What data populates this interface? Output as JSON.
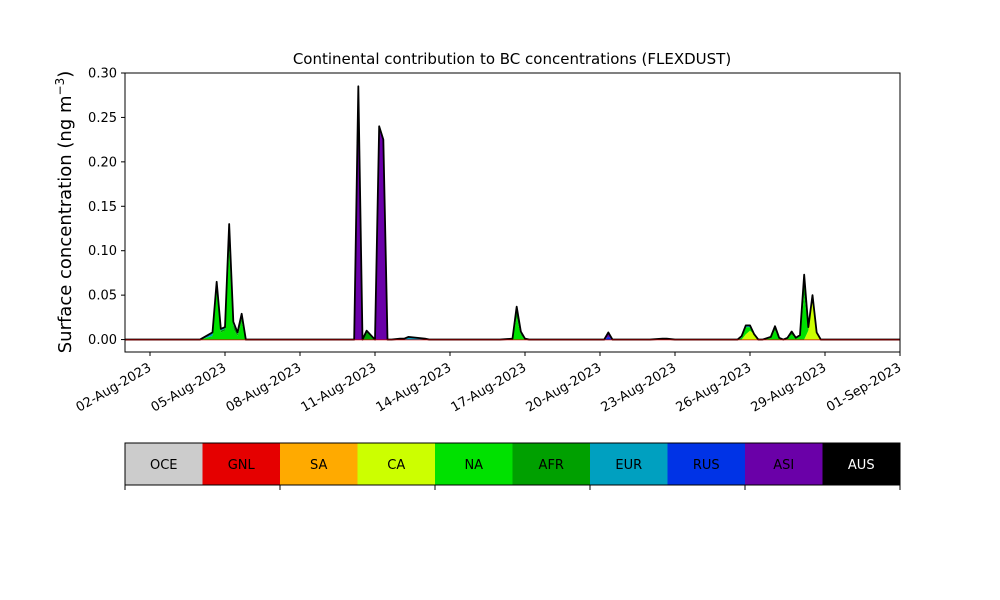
{
  "chart_data": {
    "type": "area",
    "stacked": true,
    "title": "Continental contribution to BC concentrations (FLEXDUST)",
    "xlabel": "",
    "ylabel": "Surface concentration (ng m",
    "ylabel_unit_exponent": "−3",
    "ylabel_close": ")",
    "xlim": [
      "2023-08-01",
      "2023-09-01"
    ],
    "ylim": [
      -0.014,
      0.3
    ],
    "grid": false,
    "x_tick_labels": [
      "02-Aug-2023",
      "05-Aug-2023",
      "08-Aug-2023",
      "11-Aug-2023",
      "14-Aug-2023",
      "17-Aug-2023",
      "20-Aug-2023",
      "23-Aug-2023",
      "26-Aug-2023",
      "29-Aug-2023",
      "01-Sep-2023"
    ],
    "x_tick_dates": [
      "2023-08-02",
      "2023-08-05",
      "2023-08-08",
      "2023-08-11",
      "2023-08-14",
      "2023-08-17",
      "2023-08-20",
      "2023-08-23",
      "2023-08-26",
      "2023-08-29",
      "2023-09-01"
    ],
    "y_tick_labels": [
      "0.00",
      "0.05",
      "0.10",
      "0.15",
      "0.20",
      "0.25",
      "0.30"
    ],
    "y_tick_values": [
      0,
      0.05,
      0.1,
      0.15,
      0.2,
      0.25,
      0.3
    ],
    "x": [
      "2023-08-01",
      "2023-08-03",
      "2023-08-04",
      "2023-08-04 12:00",
      "2023-08-04 16:00",
      "2023-08-04 20:00",
      "2023-08-05",
      "2023-08-05 04:00",
      "2023-08-05 08:00",
      "2023-08-05 12:00",
      "2023-08-05 16:00",
      "2023-08-05 20:00",
      "2023-08-06",
      "2023-08-06 04:00",
      "2023-08-06 08:00",
      "2023-08-06 12:00",
      "2023-08-07",
      "2023-08-09",
      "2023-08-10",
      "2023-08-10 04:00",
      "2023-08-10 08:00",
      "2023-08-10 12:00",
      "2023-08-10 16:00",
      "2023-08-11",
      "2023-08-11 04:00",
      "2023-08-11 08:00",
      "2023-08-11 12:00",
      "2023-08-11 16:00",
      "2023-08-12",
      "2023-08-12 04:00",
      "2023-08-12 08:00",
      "2023-08-12 16:00",
      "2023-08-13",
      "2023-08-13 04:00",
      "2023-08-13 08:00",
      "2023-08-13 12:00",
      "2023-08-13 16:00",
      "2023-08-13 20:00",
      "2023-08-14",
      "2023-08-14 08:00",
      "2023-08-16",
      "2023-08-16 12:00",
      "2023-08-16 16:00",
      "2023-08-16 20:00",
      "2023-08-17",
      "2023-08-17 04:00",
      "2023-08-17 08:00",
      "2023-08-17 12:00",
      "2023-08-19",
      "2023-08-20",
      "2023-08-20 04:00",
      "2023-08-20 08:00",
      "2023-08-20 12:00",
      "2023-08-20 16:00",
      "2023-08-22",
      "2023-08-22 12:00",
      "2023-08-22 16:00",
      "2023-08-23",
      "2023-08-25",
      "2023-08-25 12:00",
      "2023-08-25 16:00",
      "2023-08-25 20:00",
      "2023-08-26",
      "2023-08-26 04:00",
      "2023-08-26 08:00",
      "2023-08-26 12:00",
      "2023-08-26 20:00",
      "2023-08-27",
      "2023-08-27 04:00",
      "2023-08-27 08:00",
      "2023-08-27 12:00",
      "2023-08-27 16:00",
      "2023-08-27 20:00",
      "2023-08-28",
      "2023-08-28 04:00",
      "2023-08-28 08:00",
      "2023-08-28 12:00",
      "2023-08-28 16:00",
      "2023-08-28 20:00",
      "2023-08-29",
      "2023-08-29 04:00",
      "2023-08-29 08:00",
      "2023-08-29 16:00",
      "2023-08-30",
      "2023-08-30 12:00",
      "2023-09-01"
    ],
    "series": [
      {
        "name": "OCE",
        "color": "#cccccc",
        "values": [
          0,
          0,
          0,
          0,
          0,
          0,
          0,
          0,
          0,
          0,
          0,
          0,
          0,
          0,
          0,
          0,
          0,
          0,
          0,
          0,
          0,
          0,
          0,
          0,
          0,
          0,
          0,
          0,
          0,
          0,
          0,
          0,
          0,
          0,
          0,
          0,
          0,
          0,
          0,
          0,
          0,
          0,
          0,
          0,
          0,
          0,
          0,
          0,
          0,
          0,
          0,
          0,
          0,
          0,
          0,
          0,
          0,
          0,
          0,
          0,
          0,
          0,
          0,
          0,
          0,
          0,
          0,
          0,
          0,
          0,
          0,
          0,
          0,
          0,
          0,
          0,
          0,
          0,
          0,
          0,
          0,
          0,
          0,
          0,
          0,
          0
        ]
      },
      {
        "name": "GNL",
        "color": "#e50000",
        "values": [
          0,
          0,
          0,
          0,
          0,
          0,
          0,
          0,
          0,
          0,
          0,
          0,
          0,
          0,
          0,
          0,
          0,
          0,
          0,
          0,
          0,
          0,
          0,
          0,
          0,
          0,
          0,
          0,
          0,
          0,
          0,
          0,
          0,
          0,
          0,
          0,
          0,
          0,
          0,
          0,
          0,
          0,
          0,
          0,
          0,
          0,
          0,
          0,
          0,
          0,
          0,
          0,
          0,
          0,
          0,
          0,
          0,
          0,
          0,
          0,
          0,
          0,
          0,
          0,
          0,
          0,
          0,
          0,
          0,
          0,
          0,
          0,
          0,
          0,
          0,
          0,
          0,
          0,
          0,
          0,
          0,
          0,
          0,
          0,
          0,
          0
        ]
      },
      {
        "name": "SA",
        "color": "#ffaa00",
        "values": [
          0,
          0,
          0,
          0,
          0,
          0,
          0,
          0,
          0,
          0,
          0,
          0,
          0,
          0,
          0,
          0,
          0,
          0,
          0,
          0,
          0,
          0,
          0,
          0,
          0,
          0,
          0,
          0,
          0,
          0,
          0,
          0,
          0,
          0,
          0,
          0,
          0,
          0,
          0,
          0,
          0,
          0,
          0,
          0,
          0,
          0,
          0,
          0,
          0,
          0,
          0,
          0,
          0,
          0,
          0,
          0,
          0,
          0,
          0,
          0,
          0,
          0,
          0,
          0,
          0,
          0,
          0,
          0,
          0,
          0,
          0,
          0,
          0,
          0,
          0,
          0,
          0,
          0,
          0,
          0,
          0,
          0,
          0,
          0,
          0,
          0
        ]
      },
      {
        "name": "CA",
        "color": "#ccff00",
        "values": [
          0,
          0,
          0,
          0,
          0,
          0,
          0,
          0,
          0,
          0,
          0,
          0,
          0,
          0,
          0,
          0,
          0,
          0,
          0,
          0,
          0,
          0,
          0,
          0,
          0,
          0,
          0,
          0,
          0,
          0,
          0,
          0,
          0,
          0,
          0,
          0,
          0,
          0,
          0,
          0,
          0,
          0,
          0,
          0,
          0,
          0,
          0,
          0,
          0,
          0,
          0,
          0,
          0,
          0,
          0,
          0,
          0,
          0,
          0,
          0,
          0,
          0.006,
          0.01,
          0.006,
          0,
          0,
          0,
          0,
          0,
          0,
          0,
          0,
          0,
          0,
          0,
          0.01,
          0.05,
          0.008,
          0,
          0,
          0,
          0,
          0,
          0,
          0,
          0
        ]
      },
      {
        "name": "NA",
        "color": "#00e100",
        "values": [
          0,
          0,
          0,
          0.004,
          0.055,
          0.008,
          0.01,
          0.1,
          0.012,
          0.004,
          0.02,
          0,
          0,
          0,
          0,
          0,
          0,
          0,
          0,
          0,
          0,
          0,
          0,
          0,
          0,
          0,
          0,
          0,
          0,
          0,
          0,
          0,
          0,
          0,
          0,
          0,
          0,
          0,
          0,
          0,
          0,
          0,
          0.025,
          0.005,
          0,
          0,
          0,
          0,
          0,
          0,
          0,
          0,
          0,
          0,
          0,
          0,
          0,
          0,
          0,
          0,
          0.002,
          0.008,
          0.004,
          0,
          0,
          0,
          0.003,
          0.01,
          0.002,
          0,
          0.002,
          0.005,
          0.002,
          0.004,
          0.05,
          0.003,
          0,
          0,
          0,
          0,
          0,
          0,
          0,
          0,
          0,
          0
        ]
      },
      {
        "name": "AFR",
        "color": "#00a000",
        "values": [
          0,
          0,
          0,
          0,
          0.005,
          0.002,
          0.002,
          0.02,
          0.005,
          0.002,
          0.005,
          0,
          0,
          0,
          0,
          0,
          0,
          0,
          0,
          0,
          0,
          0,
          0.01,
          0,
          0,
          0,
          0,
          0,
          0,
          0,
          0,
          0,
          0,
          0,
          0,
          0,
          0,
          0,
          0,
          0,
          0,
          0,
          0.01,
          0.002,
          0,
          0,
          0,
          0,
          0,
          0,
          0,
          0,
          0,
          0,
          0,
          0,
          0,
          0,
          0,
          0,
          0,
          0,
          0,
          0,
          0,
          0,
          0,
          0.005,
          0,
          0,
          0,
          0.004,
          0,
          0,
          0.02,
          0,
          0,
          0,
          0,
          0,
          0,
          0,
          0,
          0,
          0,
          0
        ]
      },
      {
        "name": "EUR",
        "color": "#00a0c0",
        "values": [
          0,
          0,
          0,
          0.004,
          0.005,
          0.002,
          0.002,
          0.01,
          0.003,
          0.002,
          0.004,
          0,
          0,
          0,
          0,
          0,
          0,
          0,
          0,
          0,
          0,
          0,
          0,
          0,
          0,
          0,
          0,
          0,
          0.001,
          0.001,
          0.003,
          0.002,
          0.001,
          0,
          0,
          0,
          0,
          0,
          0,
          0,
          0,
          0.001,
          0.002,
          0.002,
          0.001,
          0,
          0,
          0,
          0,
          0,
          0,
          0,
          0,
          0,
          0,
          0.001,
          0.001,
          0,
          0,
          0,
          0.002,
          0.002,
          0.002,
          0,
          0,
          0,
          0,
          0,
          0,
          0,
          0,
          0,
          0,
          0.001,
          0.003,
          0.001,
          0,
          0,
          0,
          0,
          0,
          0,
          0,
          0,
          0,
          0
        ]
      },
      {
        "name": "RUS",
        "color": "#0033e6",
        "values": [
          0,
          0,
          0,
          0,
          0,
          0,
          0,
          0,
          0,
          0,
          0,
          0,
          0,
          0,
          0,
          0,
          0,
          0,
          0,
          0,
          0,
          0,
          0,
          0,
          0,
          0,
          0,
          0,
          0,
          0,
          0,
          0,
          0,
          0,
          0,
          0,
          0,
          0,
          0,
          0,
          0,
          0,
          0,
          0,
          0,
          0,
          0,
          0,
          0,
          0,
          0,
          0.003,
          0,
          0,
          0,
          0,
          0,
          0,
          0,
          0,
          0,
          0,
          0,
          0,
          0,
          0,
          0,
          0,
          0,
          0,
          0,
          0,
          0,
          0,
          0,
          0,
          0,
          0,
          0,
          0,
          0,
          0,
          0,
          0,
          0,
          0
        ]
      },
      {
        "name": "ASI",
        "color": "#6a00a8",
        "values": [
          0,
          0,
          0,
          0,
          0,
          0,
          0,
          0,
          0,
          0,
          0,
          0,
          0,
          0,
          0,
          0,
          0,
          0,
          0,
          0,
          0.285,
          0,
          0,
          0,
          0.24,
          0.225,
          0,
          0,
          0,
          0,
          0,
          0,
          0,
          0,
          0,
          0,
          0,
          0,
          0,
          0,
          0,
          0,
          0,
          0,
          0,
          0,
          0,
          0,
          0,
          0,
          0,
          0.005,
          0,
          0,
          0,
          0,
          0,
          0,
          0,
          0,
          0,
          0,
          0,
          0,
          0,
          0,
          0,
          0,
          0,
          0,
          0,
          0,
          0,
          0,
          0,
          0,
          0,
          0,
          0,
          0,
          0,
          0,
          0,
          0,
          0,
          0
        ]
      },
      {
        "name": "AUS",
        "color": "#000000",
        "values": [
          0,
          0,
          0,
          0,
          0,
          0,
          0,
          0,
          0,
          0,
          0,
          0,
          0,
          0,
          0,
          0,
          0,
          0,
          0,
          0,
          0,
          0,
          0,
          0,
          0,
          0,
          0,
          0,
          0,
          0,
          0,
          0,
          0,
          0,
          0,
          0,
          0,
          0,
          0,
          0,
          0,
          0,
          0,
          0,
          0,
          0,
          0,
          0,
          0,
          0,
          0,
          0,
          0,
          0,
          0,
          0,
          0,
          0,
          0,
          0,
          0,
          0,
          0,
          0,
          0,
          0,
          0,
          0,
          0,
          0,
          0,
          0,
          0,
          0,
          0,
          0,
          0,
          0,
          0,
          0,
          0,
          0,
          0,
          0,
          0,
          0
        ]
      }
    ]
  },
  "colorbar": {
    "labels": [
      "OCE",
      "GNL",
      "SA",
      "CA",
      "NA",
      "AFR",
      "EUR",
      "RUS",
      "ASI",
      "AUS"
    ],
    "colors": [
      "#cccccc",
      "#e50000",
      "#ffaa00",
      "#ccff00",
      "#00e100",
      "#00a000",
      "#00a0c0",
      "#0033e6",
      "#6a00a8",
      "#000000"
    ],
    "label_colors": [
      "#000000",
      "#000000",
      "#000000",
      "#000000",
      "#000000",
      "#000000",
      "#000000",
      "#000000",
      "#000000",
      "#ffffff"
    ]
  }
}
